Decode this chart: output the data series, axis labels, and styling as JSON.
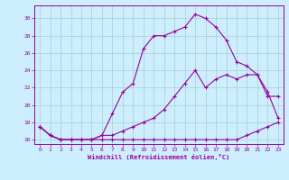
{
  "xlabel": "Windchill (Refroidissement éolien,°C)",
  "bg_color": "#cceeff",
  "line_color": "#990099",
  "grid_color": "#aacccc",
  "xlim": [
    -0.5,
    23.5
  ],
  "ylim": [
    15.5,
    31.5
  ],
  "xticks": [
    0,
    1,
    2,
    3,
    4,
    5,
    6,
    7,
    8,
    9,
    10,
    11,
    12,
    13,
    14,
    15,
    16,
    17,
    18,
    19,
    20,
    21,
    22,
    23
  ],
  "yticks": [
    16,
    18,
    20,
    22,
    24,
    26,
    28,
    30
  ],
  "line1_x": [
    0,
    1,
    2,
    3,
    4,
    5,
    6,
    7,
    8,
    9,
    10,
    11,
    12,
    13,
    14,
    15,
    16,
    17,
    18,
    19,
    20,
    21,
    22,
    23
  ],
  "line1_y": [
    17.5,
    16.5,
    16.0,
    16.0,
    16.0,
    16.0,
    16.0,
    16.0,
    16.0,
    16.0,
    16.0,
    16.0,
    16.0,
    16.0,
    16.0,
    16.0,
    16.0,
    16.0,
    16.0,
    16.0,
    16.5,
    17.0,
    17.5,
    18.0
  ],
  "line2_x": [
    0,
    1,
    2,
    3,
    4,
    5,
    6,
    7,
    8,
    9,
    10,
    11,
    12,
    13,
    14,
    15,
    16,
    17,
    18,
    19,
    20,
    21,
    22,
    23
  ],
  "line2_y": [
    17.5,
    16.5,
    16.0,
    16.0,
    16.0,
    16.0,
    16.5,
    19.0,
    21.5,
    22.5,
    26.5,
    28.0,
    28.0,
    28.5,
    29.0,
    30.5,
    30.0,
    29.0,
    27.5,
    25.0,
    24.5,
    23.5,
    21.0,
    21.0
  ],
  "line3_x": [
    0,
    1,
    2,
    3,
    4,
    5,
    6,
    7,
    8,
    9,
    10,
    11,
    12,
    13,
    14,
    15,
    16,
    17,
    18,
    19,
    20,
    21,
    22,
    23
  ],
  "line3_y": [
    17.5,
    16.5,
    16.0,
    16.0,
    16.0,
    16.0,
    16.5,
    16.5,
    17.0,
    17.5,
    18.0,
    18.5,
    19.5,
    21.0,
    22.5,
    24.0,
    22.0,
    23.0,
    23.5,
    23.0,
    23.5,
    23.5,
    21.5,
    18.5
  ]
}
